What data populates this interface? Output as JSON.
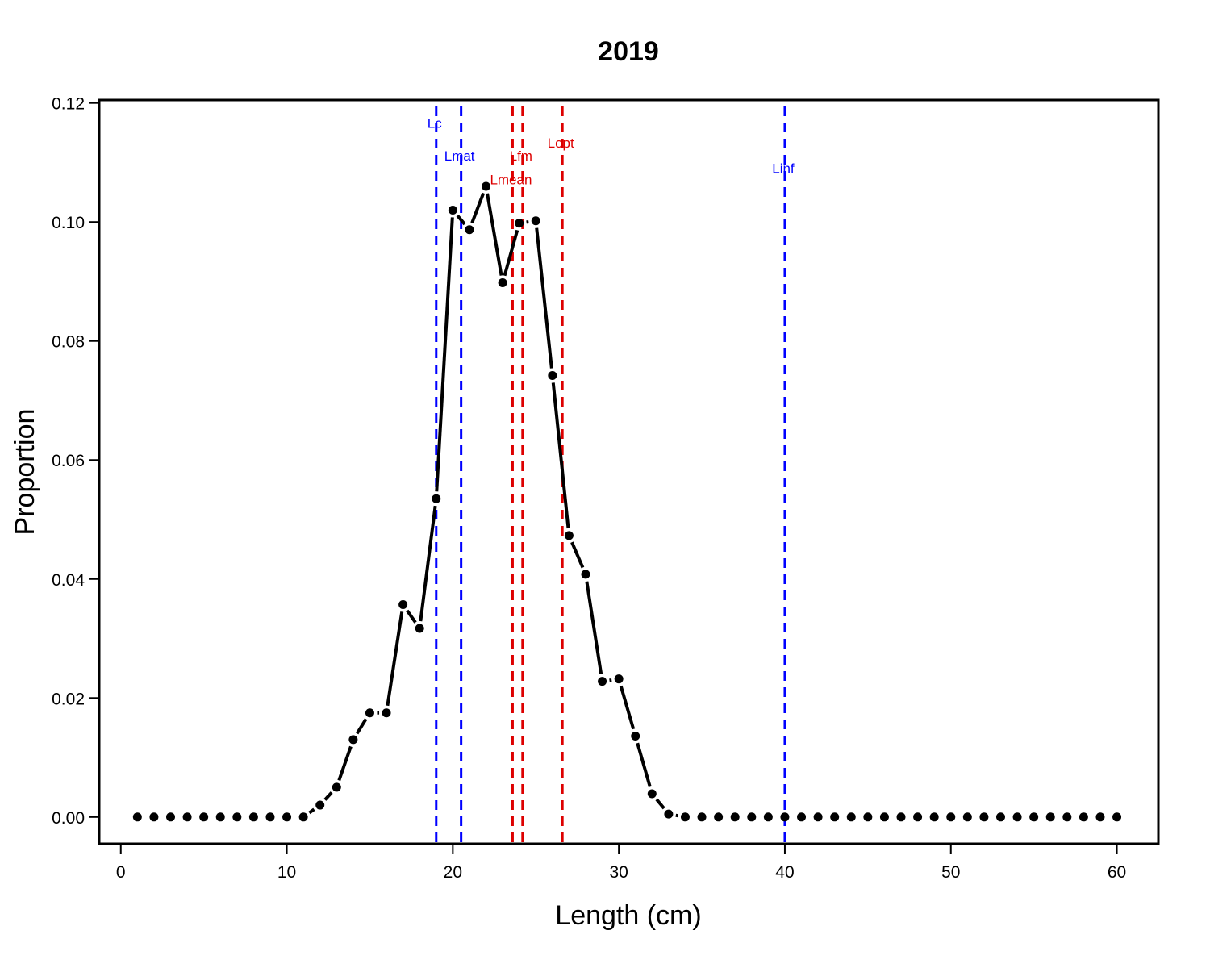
{
  "chart_data": {
    "type": "line",
    "title": "2019",
    "xlabel": "Length (cm)",
    "ylabel": "Proportion",
    "xlim": [
      -1.3,
      62.5
    ],
    "ylim": [
      -0.0045,
      0.1205
    ],
    "xticks": [
      0,
      10,
      20,
      30,
      40,
      50,
      60
    ],
    "xtick_labels": [
      "0",
      "10",
      "20",
      "30",
      "40",
      "50",
      "60"
    ],
    "yticks": [
      0.0,
      0.02,
      0.04,
      0.06,
      0.08,
      0.1,
      0.12
    ],
    "ytick_labels": [
      "0.00",
      "0.02",
      "0.04",
      "0.06",
      "0.08",
      "0.10",
      "0.12"
    ],
    "grid": false,
    "series": [
      {
        "color": "#000000",
        "x": [
          1,
          2,
          3,
          4,
          5,
          6,
          7,
          8,
          9,
          10,
          11,
          12,
          13,
          14,
          15,
          16,
          17,
          18,
          19,
          20,
          21,
          22,
          23,
          24,
          25,
          26,
          27,
          28,
          29,
          30,
          31,
          32,
          33,
          34,
          35,
          36,
          37,
          38,
          39,
          40,
          41,
          42,
          43,
          44,
          45,
          46,
          47,
          48,
          49,
          50,
          51,
          52,
          53,
          54,
          55,
          56,
          57,
          58,
          59,
          60
        ],
        "y": [
          0,
          0,
          0,
          0,
          0,
          0,
          0,
          0,
          0,
          0,
          0,
          0.002,
          0.005,
          0.013,
          0.0175,
          0.0175,
          0.0357,
          0.0317,
          0.0535,
          0.102,
          0.0987,
          0.106,
          0.0898,
          0.0998,
          0.1002,
          0.0742,
          0.0473,
          0.0408,
          0.0228,
          0.0232,
          0.0136,
          0.0039,
          0.0005,
          0,
          0,
          0,
          0,
          0,
          0,
          0,
          0,
          0,
          0,
          0,
          0,
          0,
          0,
          0,
          0,
          0,
          0,
          0,
          0,
          0,
          0,
          0,
          0,
          0,
          0,
          0
        ]
      }
    ],
    "reference_lines": [
      {
        "label": "Lc",
        "x": 19.0,
        "color": "#0000ff",
        "label_y": 0.1158
      },
      {
        "label": "Lmat",
        "x": 20.5,
        "color": "#0000ff",
        "label_y": 0.1103
      },
      {
        "label": "Lmean",
        "x": 23.6,
        "color": "#dd0000",
        "label_y": 0.1063
      },
      {
        "label": "Lfm",
        "x": 24.2,
        "color": "#dd0000",
        "label_y": 0.1103
      },
      {
        "label": "Lopt",
        "x": 26.6,
        "color": "#dd0000",
        "label_y": 0.1125
      },
      {
        "label": "Linf",
        "x": 40.0,
        "color": "#0000ff",
        "label_y": 0.1082
      }
    ]
  }
}
